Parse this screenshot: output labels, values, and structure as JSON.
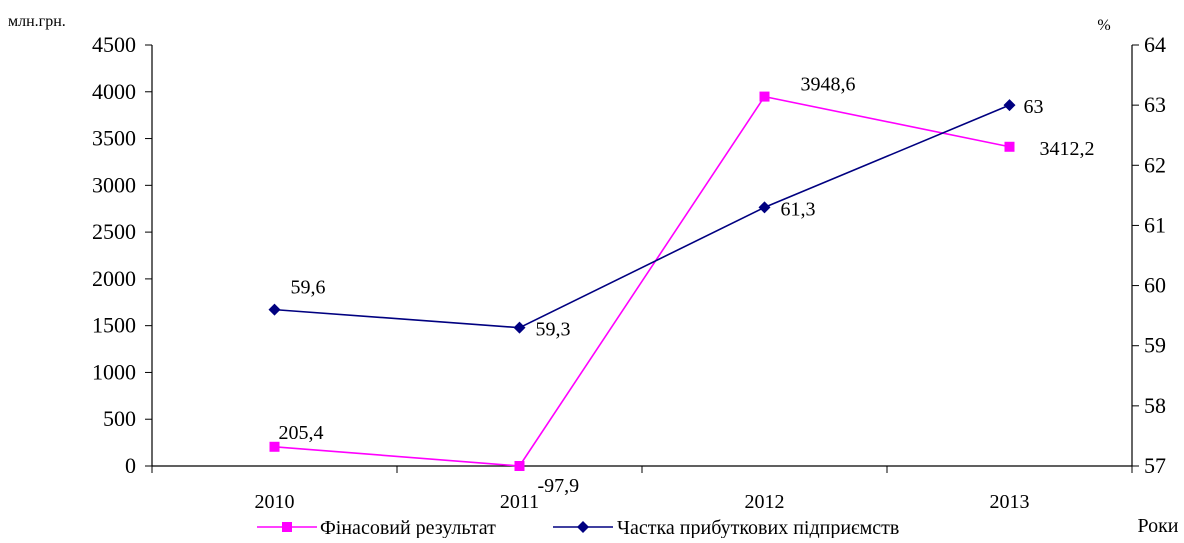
{
  "chart_data": {
    "type": "line",
    "categories": [
      "2010",
      "2011",
      "2012",
      "2013"
    ],
    "xlabel": "Роки",
    "y_left": {
      "label": "млн.грн.",
      "ylim": [
        0,
        4500
      ],
      "ticks": [
        0,
        500,
        1000,
        1500,
        2000,
        2500,
        3000,
        3500,
        4000,
        4500
      ]
    },
    "y_right": {
      "label": "%",
      "ylim": [
        57,
        64
      ],
      "ticks": [
        57,
        58,
        59,
        60,
        61,
        62,
        63,
        64
      ]
    },
    "grid": false,
    "legend_position": "bottom",
    "series": [
      {
        "name": "Фінасовий результат",
        "axis": "left",
        "color": "#ff00ff",
        "marker": "square",
        "values": [
          205.4,
          -97.9,
          3948.6,
          3412.2
        ],
        "labels": [
          "205,4",
          "-97,9",
          "3948,6",
          "3412,2"
        ]
      },
      {
        "name": "Частка прибуткових підприємств",
        "axis": "right",
        "color": "#000080",
        "marker": "diamond",
        "values": [
          59.6,
          59.3,
          61.3,
          63
        ],
        "labels": [
          "59,6",
          "59,3",
          "61,3",
          "63"
        ]
      }
    ]
  }
}
